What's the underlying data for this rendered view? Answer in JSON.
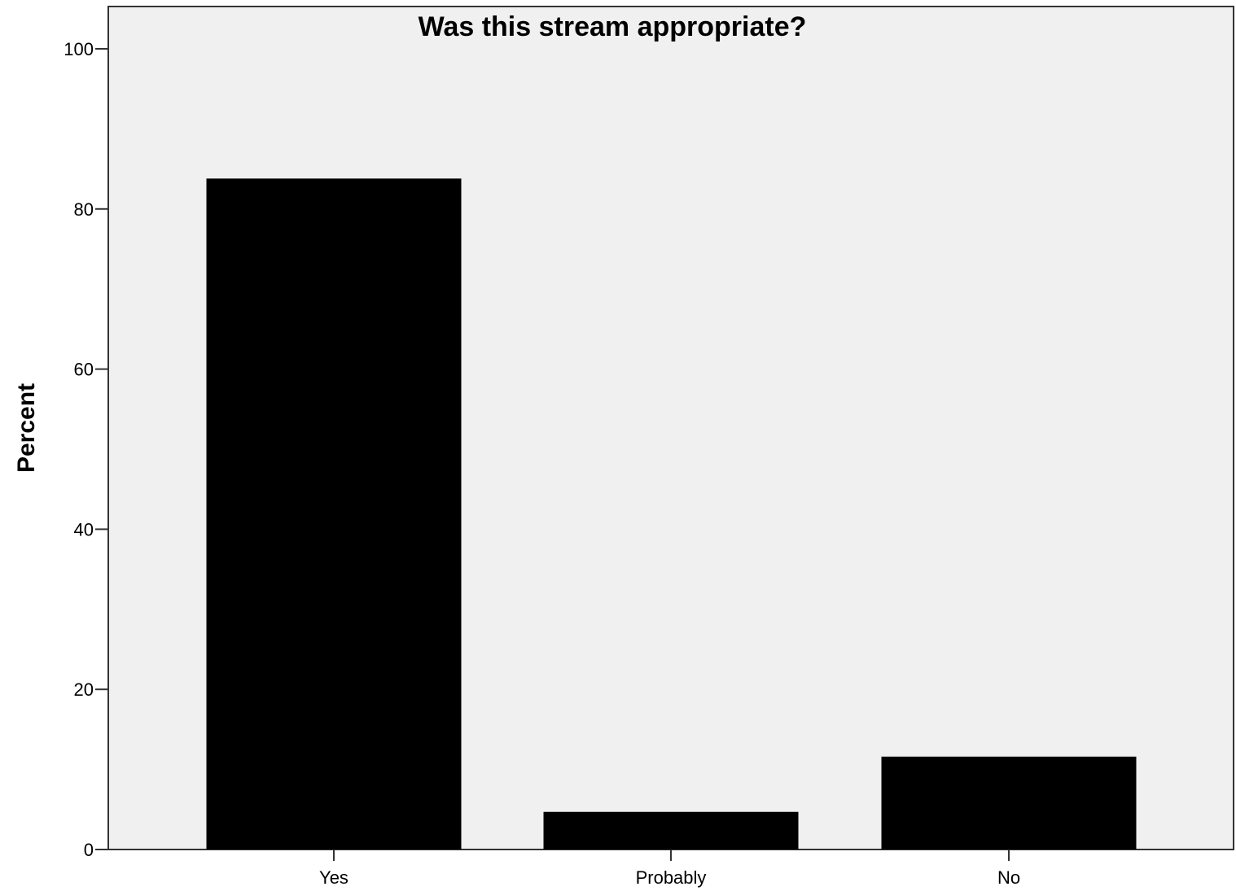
{
  "chart_data": {
    "type": "bar",
    "title": "Was this stream appropriate?",
    "xlabel": "",
    "ylabel": "Percent",
    "categories": [
      "Yes",
      "Probably",
      "No"
    ],
    "values": [
      83.8,
      4.7,
      11.6
    ],
    "ylim": [
      0,
      100
    ],
    "yticks": [
      0,
      20,
      40,
      60,
      80,
      100
    ],
    "ytick_labels": [
      "0",
      "20",
      "40",
      "60",
      "80",
      "100"
    ],
    "grid": false,
    "colors": {
      "bar": "#000000",
      "plot_background": "#f0f0f0",
      "frame": "#333333"
    }
  }
}
